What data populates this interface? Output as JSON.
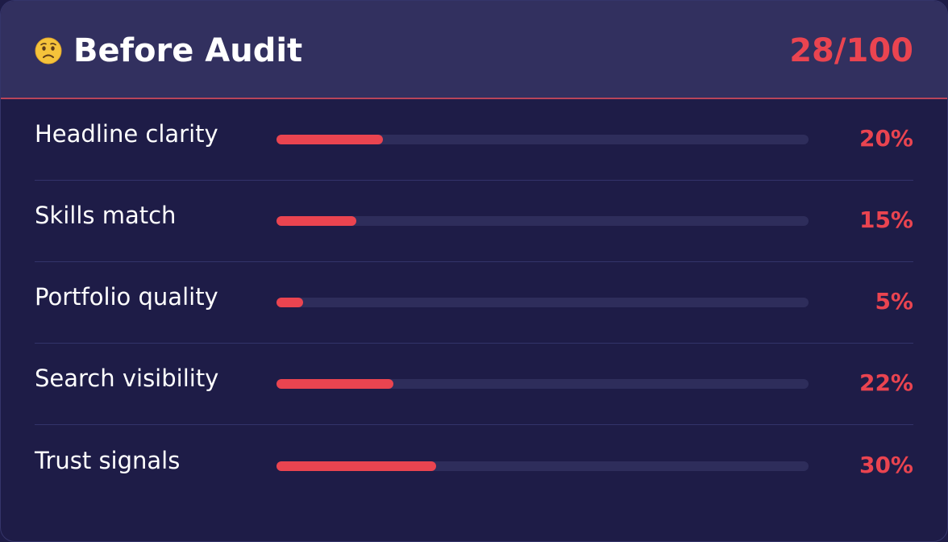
{
  "header": {
    "emoji_icon": "worried-face-icon",
    "title": "Before Audit",
    "score": "28/100"
  },
  "colors": {
    "accent": "#ea4450",
    "header_bg": "#32305f",
    "card_bg": "#1e1c47",
    "track": "#2e2d5b"
  },
  "metrics": [
    {
      "label": "Headline clarity",
      "value": "20%",
      "fraction": 0.2
    },
    {
      "label": "Skills match",
      "value": "15%",
      "fraction": 0.15
    },
    {
      "label": "Portfolio quality",
      "value": "5%",
      "fraction": 0.05
    },
    {
      "label": "Search visibility",
      "value": "22%",
      "fraction": 0.22
    },
    {
      "label": "Trust signals",
      "value": "30%",
      "fraction": 0.3
    }
  ]
}
